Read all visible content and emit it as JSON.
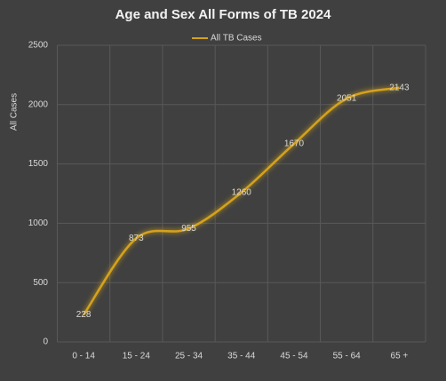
{
  "chart_data": {
    "type": "line",
    "title": "Age and Sex All Forms of TB  2024",
    "y_label": "All Cases",
    "categories": [
      "0 - 14",
      "15 - 24",
      "25 - 34",
      "35 - 44",
      "45 - 54",
      "55 - 64",
      "65 +"
    ],
    "series": [
      {
        "name": "All TB Cases",
        "color": "#d4a21a",
        "values": [
          228,
          873,
          955,
          1260,
          1670,
          2051,
          2143
        ]
      }
    ],
    "ylim": [
      0,
      2500
    ],
    "yticks": [
      0,
      500,
      1000,
      1500,
      2000,
      2500
    ],
    "grid": true,
    "smooth": true,
    "legend": "top"
  }
}
